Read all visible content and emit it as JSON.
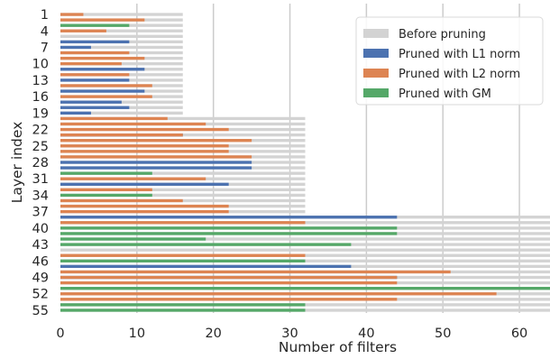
{
  "chart_data": {
    "type": "bar",
    "orientation": "horizontal",
    "xlabel": "Number of filters",
    "ylabel": "Layer index",
    "xlim": [
      0,
      64
    ],
    "xticks": [
      0,
      10,
      20,
      30,
      40,
      50,
      60
    ],
    "ytick_labels": [
      "1",
      "4",
      "7",
      "10",
      "13",
      "16",
      "19",
      "22",
      "25",
      "28",
      "31",
      "34",
      "37",
      "40",
      "43",
      "46",
      "49",
      "52",
      "55"
    ],
    "ytick_layers": [
      1,
      4,
      7,
      10,
      13,
      16,
      19,
      22,
      25,
      28,
      31,
      34,
      37,
      40,
      43,
      46,
      49,
      52,
      55
    ],
    "grid": "vertical",
    "legend_position": "top-right",
    "layers": [
      1,
      2,
      3,
      4,
      5,
      6,
      7,
      8,
      9,
      10,
      11,
      12,
      13,
      14,
      15,
      16,
      17,
      18,
      19,
      20,
      21,
      22,
      23,
      24,
      25,
      26,
      27,
      28,
      29,
      30,
      31,
      32,
      33,
      34,
      35,
      36,
      37,
      38,
      39,
      40,
      41,
      42,
      43,
      44,
      45,
      46,
      47,
      48,
      49,
      50,
      51,
      52,
      53,
      54,
      55
    ],
    "series": [
      {
        "name": "Before pruning",
        "color": "#d3d3d3",
        "values": [
          16,
          16,
          16,
          16,
          16,
          16,
          16,
          16,
          16,
          16,
          16,
          16,
          16,
          16,
          16,
          16,
          16,
          16,
          16,
          32,
          32,
          32,
          32,
          32,
          32,
          32,
          32,
          32,
          32,
          32,
          32,
          32,
          32,
          32,
          32,
          32,
          32,
          64,
          64,
          64,
          64,
          64,
          64,
          64,
          64,
          64,
          64,
          64,
          64,
          64,
          64,
          64,
          64,
          64,
          64
        ]
      },
      {
        "name": "Pruned with L1 norm",
        "color": "#4c72b0",
        "values": [
          0,
          0,
          0,
          0,
          0,
          9,
          4,
          0,
          0,
          0,
          11,
          0,
          9,
          0,
          11,
          0,
          8,
          9,
          4,
          0,
          0,
          0,
          16,
          0,
          0,
          0,
          0,
          25,
          25,
          0,
          0,
          22,
          0,
          0,
          0,
          0,
          0,
          44,
          0,
          0,
          0,
          0,
          0,
          0,
          0,
          0,
          38,
          0,
          44,
          0,
          0,
          0,
          0,
          0,
          0
        ]
      },
      {
        "name": "Pruned with L2 norm",
        "color": "#dd8452",
        "values": [
          3,
          11,
          0,
          6,
          0,
          0,
          0,
          9,
          11,
          8,
          0,
          9,
          0,
          12,
          0,
          12,
          0,
          0,
          0,
          14,
          19,
          22,
          16,
          25,
          22,
          22,
          25,
          0,
          0,
          0,
          19,
          0,
          12,
          0,
          16,
          22,
          22,
          0,
          32,
          0,
          0,
          0,
          0,
          0,
          32,
          0,
          0,
          51,
          44,
          44,
          0,
          57,
          44,
          0,
          0
        ]
      },
      {
        "name": "Pruned with GM",
        "color": "#55a868",
        "values": [
          0,
          0,
          9,
          0,
          0,
          0,
          0,
          0,
          0,
          0,
          0,
          0,
          0,
          0,
          0,
          0,
          0,
          0,
          0,
          0,
          0,
          0,
          0,
          0,
          0,
          0,
          0,
          0,
          0,
          12,
          0,
          0,
          0,
          12,
          0,
          0,
          0,
          0,
          0,
          44,
          44,
          19,
          38,
          0,
          0,
          32,
          0,
          0,
          0,
          0,
          64,
          0,
          0,
          32,
          32
        ]
      }
    ]
  }
}
